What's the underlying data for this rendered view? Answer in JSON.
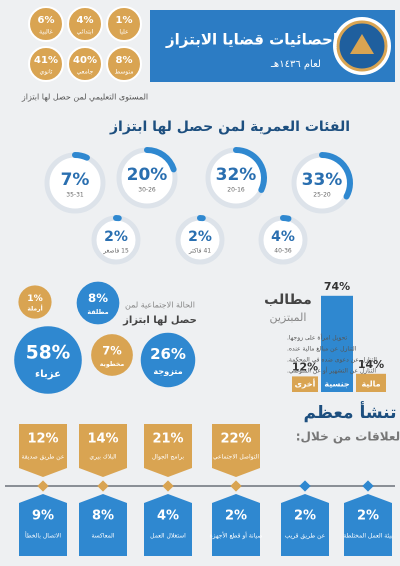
{
  "header": {
    "title": "إحصائيات قضايا الابتزاز",
    "subtitle": "لعام ١٤٣٦هـ"
  },
  "education": {
    "caption": "المستوى التعليمي لمن حصل لها ابتزاز",
    "items": [
      {
        "percent": "6%",
        "label": "غالبية"
      },
      {
        "percent": "4%",
        "label": "ابتدائي"
      },
      {
        "percent": "1%",
        "label": "عليا"
      },
      {
        "percent": "41%",
        "label": "ثانوي"
      },
      {
        "percent": "40%",
        "label": "جامعي"
      },
      {
        "percent": "8%",
        "label": "متوسط"
      }
    ]
  },
  "age_groups": {
    "title": "الفئات العمرية لمن حصل لها ابتزاز",
    "categories": [
      "35-31",
      "30-26",
      "20-16",
      "25-20",
      "15 فاصغر",
      "41 فاكثر",
      "40-36"
    ],
    "values": [
      7,
      20,
      32,
      33,
      2,
      2,
      4
    ],
    "value_labels": [
      "7%",
      "20%",
      "32%",
      "33%",
      "2%",
      "2%",
      "4%"
    ],
    "color": "#2f88d0"
  },
  "social_status": {
    "caption_lines": [
      "الحالة الاجتماعية لمن",
      "حصل لها ابتزاز"
    ],
    "categories": [
      "أرملة",
      "مطلقة",
      "عزباء",
      "مخطوبة",
      "متزوجة"
    ],
    "values": [
      1,
      8,
      58,
      7,
      26
    ],
    "value_labels": [
      "1%",
      "8%",
      "58%",
      "7%",
      "26%"
    ],
    "colors": [
      "#d9a452",
      "#2f88d0",
      "#2f88d0",
      "#d9a452",
      "#2f88d0"
    ]
  },
  "demands": {
    "title_lines": [
      "مطالب",
      "المبتزين"
    ],
    "categories": [
      "أخرى",
      "جنسية",
      "مالية"
    ],
    "values": [
      12,
      74,
      14
    ],
    "value_labels": [
      "12%",
      "74%",
      "14%"
    ],
    "colors": [
      "#d9a452",
      "#2f88d0",
      "#d9a452"
    ],
    "notes": [
      "تحويل امرأة على زوجها.",
      "التنازل عن مبالغ مالية عنده.",
      "التنازل عن دعوى ضده في المحكمة.",
      "التنازل عن التشهير أو عن المتوضي."
    ]
  },
  "relationships": {
    "title_lines": [
      "تنشأ معظم",
      "العلاقات من خلال:"
    ],
    "top": [
      {
        "percent": "12%",
        "label": "عن طريق صديقة"
      },
      {
        "percent": "14%",
        "label": "البلاك بيري"
      },
      {
        "percent": "21%",
        "label": "برامج الجوال"
      },
      {
        "percent": "22%",
        "label": "التواصل الاجتماعي"
      }
    ],
    "bottom": [
      {
        "percent": "9%",
        "label": "الاتصال بالخطأ"
      },
      {
        "percent": "8%",
        "label": "المعاكسة"
      },
      {
        "percent": "4%",
        "label": "استغلال العمل"
      },
      {
        "percent": "2%",
        "label": "صيانة أو قطع الأجهزة"
      },
      {
        "percent": "2%",
        "label": "عن طريق قريب"
      },
      {
        "percent": "2%",
        "label": "بيئة العمل المختلطة"
      }
    ]
  }
}
